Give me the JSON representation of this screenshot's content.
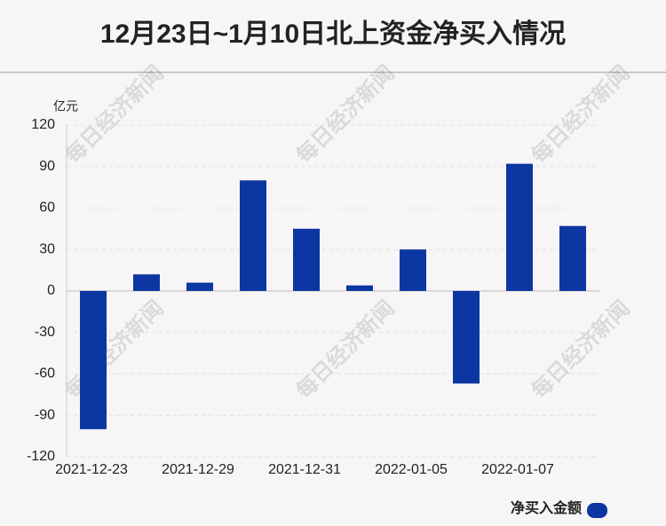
{
  "chart_data": {
    "type": "bar",
    "title": "12月23日~1月10日北上资金净买入情况",
    "unit": "亿元",
    "watermark": "每日经济新闻",
    "categories": [
      "2021-12-23",
      null,
      "2021-12-29",
      null,
      "2021-12-31",
      null,
      "2022-01-05",
      null,
      "2022-01-07",
      null
    ],
    "series": [
      {
        "name": "净买入金额",
        "color": "#0c36a1",
        "values": [
          -100,
          12,
          6,
          80,
          45,
          4,
          30,
          -67,
          92,
          47
        ]
      }
    ],
    "ylim": [
      -120,
      120
    ],
    "yticks": [
      -120,
      -90,
      -60,
      -30,
      0,
      30,
      60,
      90,
      120
    ],
    "grid": true
  }
}
